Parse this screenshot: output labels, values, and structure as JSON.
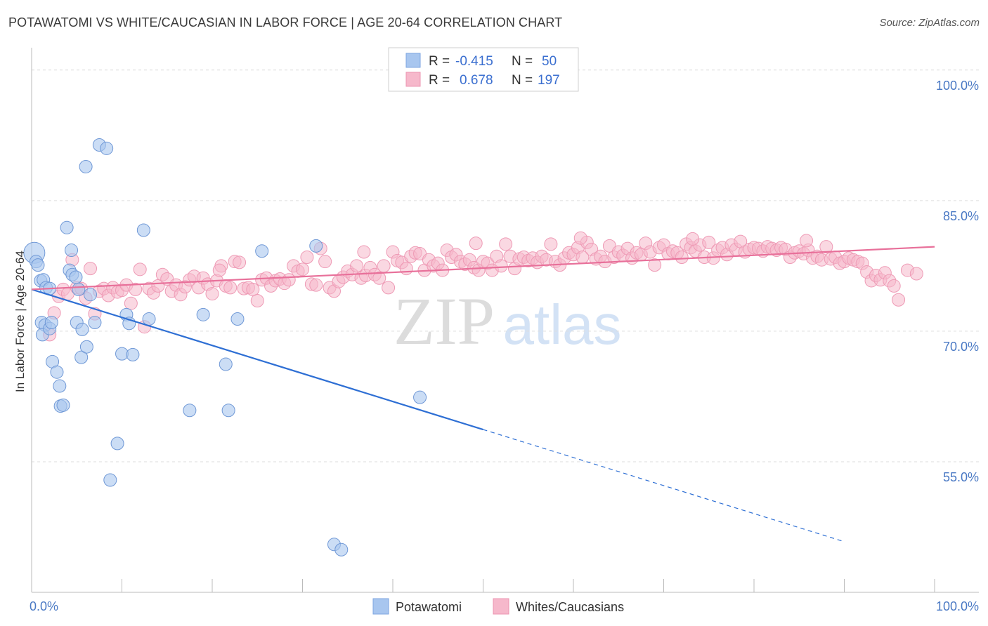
{
  "header": {
    "title": "POTAWATOMI VS WHITE/CAUCASIAN IN LABOR FORCE | AGE 20-64 CORRELATION CHART",
    "source": "Source: ZipAtlas.com"
  },
  "watermark": {
    "part1": "ZIP",
    "part2": "atlas"
  },
  "legend": {
    "rows": [
      {
        "r_label": "R =",
        "r_value": "-0.415",
        "n_label": "N =",
        "n_value": "50"
      },
      {
        "r_label": "R =",
        "r_value": "0.678",
        "n_label": "N =",
        "n_value": "197"
      }
    ]
  },
  "bottom_legend": [
    "Potawatomi",
    "Whites/Caucasians"
  ],
  "chart_data": {
    "type": "scatter",
    "ylabel": "In Labor Force | Age 20-64",
    "xlim": [
      0,
      100
    ],
    "ylim": [
      40,
      102
    ],
    "x_ticks": [
      "0.0%",
      "100.0%"
    ],
    "y_ticks": [
      {
        "value": 100,
        "label": "100.0%"
      },
      {
        "value": 85,
        "label": "85.0%"
      },
      {
        "value": 70,
        "label": "70.0%"
      },
      {
        "value": 55,
        "label": "55.0%"
      }
    ],
    "colors": {
      "potawatomi": "#a8c6ef",
      "potawatomi_line": "#2e6fd4",
      "whites": "#f6b8cb",
      "whites_line": "#e8709a"
    },
    "series": [
      {
        "name": "Potawatomi",
        "points": [
          [
            0.3,
            79.0
          ],
          [
            0.5,
            78.0
          ],
          [
            0.7,
            77.6
          ],
          [
            1.0,
            75.8
          ],
          [
            1.3,
            75.9
          ],
          [
            1.6,
            75.0
          ],
          [
            1.1,
            71.0
          ],
          [
            1.5,
            70.7
          ],
          [
            1.2,
            69.6
          ],
          [
            2.0,
            70.3
          ],
          [
            2.2,
            71.0
          ],
          [
            2.0,
            74.9
          ],
          [
            2.3,
            66.5
          ],
          [
            2.8,
            65.3
          ],
          [
            3.2,
            61.4
          ],
          [
            3.1,
            63.7
          ],
          [
            3.5,
            61.5
          ],
          [
            3.9,
            81.9
          ],
          [
            4.4,
            79.3
          ],
          [
            4.2,
            77.0
          ],
          [
            4.5,
            76.5
          ],
          [
            4.9,
            76.2
          ],
          [
            5.2,
            74.8
          ],
          [
            5.0,
            71.0
          ],
          [
            5.6,
            70.2
          ],
          [
            5.5,
            67.0
          ],
          [
            6.0,
            88.9
          ],
          [
            6.5,
            74.2
          ],
          [
            7.0,
            71.0
          ],
          [
            7.5,
            91.4
          ],
          [
            8.3,
            91.0
          ],
          [
            8.7,
            52.9
          ],
          [
            9.5,
            57.1
          ],
          [
            10.0,
            67.4
          ],
          [
            10.5,
            71.9
          ],
          [
            10.8,
            70.9
          ],
          [
            11.2,
            67.3
          ],
          [
            12.4,
            81.6
          ],
          [
            13.0,
            71.4
          ],
          [
            17.5,
            60.9
          ],
          [
            19.0,
            71.9
          ],
          [
            21.5,
            66.2
          ],
          [
            21.8,
            60.9
          ],
          [
            22.8,
            71.4
          ],
          [
            25.5,
            79.2
          ],
          [
            31.5,
            79.8
          ],
          [
            33.5,
            45.5
          ],
          [
            34.3,
            44.9
          ],
          [
            43.0,
            62.4
          ],
          [
            6.1,
            68.2
          ]
        ]
      },
      {
        "name": "Whites/Caucasians",
        "points": [
          [
            2,
            69.6
          ],
          [
            2.5,
            72.1
          ],
          [
            3,
            74.0
          ],
          [
            3.5,
            74.8
          ],
          [
            4,
            74.3
          ],
          [
            4.5,
            78.2
          ],
          [
            5,
            75.0
          ],
          [
            5.5,
            74.9
          ],
          [
            6,
            73.8
          ],
          [
            6.5,
            77.2
          ],
          [
            7,
            72.0
          ],
          [
            7.5,
            74.6
          ],
          [
            8,
            74.9
          ],
          [
            8.5,
            74.1
          ],
          [
            9,
            75.0
          ],
          [
            9.5,
            74.5
          ],
          [
            10,
            74.7
          ],
          [
            10.5,
            75.3
          ],
          [
            11,
            73.2
          ],
          [
            11.5,
            74.8
          ],
          [
            12,
            77.1
          ],
          [
            12.5,
            70.5
          ],
          [
            13,
            74.9
          ],
          [
            13.5,
            74.4
          ],
          [
            14,
            75.2
          ],
          [
            14.5,
            76.5
          ],
          [
            15,
            76.0
          ],
          [
            15.5,
            74.6
          ],
          [
            16,
            75.3
          ],
          [
            16.5,
            74.2
          ],
          [
            17,
            75.1
          ],
          [
            17.5,
            75.9
          ],
          [
            18,
            76.3
          ],
          [
            18.5,
            75.0
          ],
          [
            19,
            76.1
          ],
          [
            19.5,
            75.4
          ],
          [
            20,
            74.3
          ],
          [
            20.5,
            75.8
          ],
          [
            21,
            77.5
          ],
          [
            21.5,
            75.2
          ],
          [
            22,
            75.0
          ],
          [
            22.5,
            78.0
          ],
          [
            23,
            77.9
          ],
          [
            23.5,
            74.9
          ],
          [
            24,
            75.0
          ],
          [
            24.5,
            74.8
          ],
          [
            25,
            73.5
          ],
          [
            25.5,
            75.9
          ],
          [
            26,
            76.1
          ],
          [
            26.5,
            75.2
          ],
          [
            27,
            75.8
          ],
          [
            27.5,
            76.0
          ],
          [
            28,
            75.5
          ],
          [
            28.5,
            75.9
          ],
          [
            29,
            77.5
          ],
          [
            29.5,
            76.9
          ],
          [
            30,
            77.1
          ],
          [
            30.5,
            78.5
          ],
          [
            31,
            75.4
          ],
          [
            31.5,
            75.3
          ],
          [
            32,
            79.5
          ],
          [
            32.5,
            78.0
          ],
          [
            33,
            75.0
          ],
          [
            33.5,
            74.6
          ],
          [
            34,
            75.7
          ],
          [
            34.5,
            76.2
          ],
          [
            35,
            76.9
          ],
          [
            35.5,
            76.5
          ],
          [
            36,
            77.5
          ],
          [
            36.5,
            76.1
          ],
          [
            37,
            76.4
          ],
          [
            37.5,
            77.3
          ],
          [
            38,
            76.5
          ],
          [
            38.5,
            76.1
          ],
          [
            39,
            77.5
          ],
          [
            39.5,
            75.0
          ],
          [
            40,
            79.1
          ],
          [
            40.5,
            78.1
          ],
          [
            41,
            77.9
          ],
          [
            41.5,
            77.2
          ],
          [
            42,
            78.6
          ],
          [
            42.5,
            79.0
          ],
          [
            43,
            78.9
          ],
          [
            43.5,
            77.0
          ],
          [
            44,
            78.2
          ],
          [
            44.5,
            77.5
          ],
          [
            45,
            77.8
          ],
          [
            45.5,
            77.0
          ],
          [
            46,
            79.3
          ],
          [
            46.5,
            78.5
          ],
          [
            47,
            78.8
          ],
          [
            47.5,
            78.0
          ],
          [
            48,
            77.7
          ],
          [
            48.5,
            78.2
          ],
          [
            49,
            77.3
          ],
          [
            49.5,
            77.0
          ],
          [
            50,
            78.0
          ],
          [
            50.5,
            77.8
          ],
          [
            51,
            77.0
          ],
          [
            51.5,
            78.6
          ],
          [
            52,
            77.5
          ],
          [
            52.5,
            80.0
          ],
          [
            53,
            78.6
          ],
          [
            53.5,
            77.2
          ],
          [
            54,
            78.3
          ],
          [
            54.5,
            78.5
          ],
          [
            55,
            78.1
          ],
          [
            55.5,
            78.4
          ],
          [
            56,
            77.9
          ],
          [
            56.5,
            78.6
          ],
          [
            57,
            78.2
          ],
          [
            57.5,
            80.0
          ],
          [
            58,
            78.0
          ],
          [
            58.5,
            77.6
          ],
          [
            59,
            78.4
          ],
          [
            59.5,
            79.0
          ],
          [
            60,
            78.8
          ],
          [
            60.5,
            79.6
          ],
          [
            61,
            78.5
          ],
          [
            61.5,
            80.2
          ],
          [
            62,
            79.4
          ],
          [
            62.5,
            78.3
          ],
          [
            63,
            78.6
          ],
          [
            63.5,
            78.0
          ],
          [
            64,
            79.8
          ],
          [
            64.5,
            78.5
          ],
          [
            65,
            79.1
          ],
          [
            65.5,
            78.7
          ],
          [
            66,
            79.5
          ],
          [
            66.5,
            78.4
          ],
          [
            67,
            79.0
          ],
          [
            67.5,
            78.8
          ],
          [
            68,
            80.1
          ],
          [
            68.5,
            79.1
          ],
          [
            69,
            77.6
          ],
          [
            69.5,
            79.6
          ],
          [
            70,
            79.9
          ],
          [
            70.5,
            78.9
          ],
          [
            71,
            79.2
          ],
          [
            71.5,
            79.0
          ],
          [
            72,
            78.5
          ],
          [
            72.5,
            80.0
          ],
          [
            73,
            79.6
          ],
          [
            73.5,
            79.2
          ],
          [
            74,
            79.9
          ],
          [
            74.5,
            78.5
          ],
          [
            75,
            80.2
          ],
          [
            75.5,
            78.4
          ],
          [
            76,
            79.3
          ],
          [
            76.5,
            79.6
          ],
          [
            77,
            78.8
          ],
          [
            77.5,
            79.9
          ],
          [
            78,
            79.4
          ],
          [
            78.5,
            80.3
          ],
          [
            79,
            79.1
          ],
          [
            79.5,
            79.4
          ],
          [
            80,
            79.6
          ],
          [
            80.5,
            79.5
          ],
          [
            81,
            79.2
          ],
          [
            81.5,
            79.7
          ],
          [
            82,
            79.5
          ],
          [
            82.5,
            79.3
          ],
          [
            83,
            79.6
          ],
          [
            83.5,
            79.4
          ],
          [
            84,
            78.5
          ],
          [
            84.5,
            79.0
          ],
          [
            85,
            79.2
          ],
          [
            85.5,
            78.9
          ],
          [
            86,
            79.3
          ],
          [
            86.5,
            78.4
          ],
          [
            87,
            78.6
          ],
          [
            87.5,
            78.2
          ],
          [
            88,
            79.7
          ],
          [
            88.5,
            78.3
          ],
          [
            89,
            78.5
          ],
          [
            89.5,
            77.8
          ],
          [
            90,
            78.0
          ],
          [
            90.5,
            78.4
          ],
          [
            91,
            78.2
          ],
          [
            91.5,
            78.0
          ],
          [
            92,
            77.8
          ],
          [
            92.5,
            76.8
          ],
          [
            93,
            75.8
          ],
          [
            93.5,
            76.4
          ],
          [
            94,
            75.9
          ],
          [
            94.5,
            76.7
          ],
          [
            95,
            75.8
          ],
          [
            95.5,
            75.2
          ],
          [
            96,
            73.6
          ],
          [
            97,
            77.0
          ],
          [
            98,
            76.6
          ],
          [
            20.8,
            77.0
          ],
          [
            36.8,
            79.1
          ],
          [
            49.2,
            80.1
          ],
          [
            60.8,
            80.7
          ],
          [
            73.2,
            80.6
          ],
          [
            85.8,
            80.4
          ]
        ]
      }
    ],
    "trend_lines": [
      {
        "series": "Potawatomi",
        "from": [
          0,
          74.8
        ],
        "to": [
          100,
          42.6
        ],
        "solid_until": 50
      },
      {
        "series": "Whites/Caucasians",
        "from": [
          0,
          74.8
        ],
        "to": [
          100,
          79.7
        ]
      }
    ]
  }
}
